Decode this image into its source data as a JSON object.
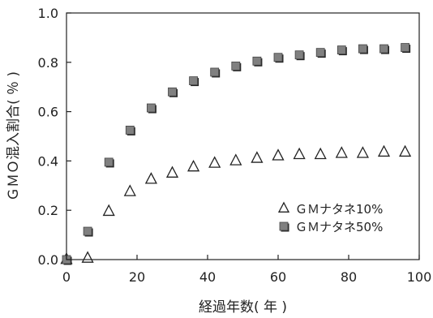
{
  "chart_data": {
    "type": "scatter",
    "xlabel": "経過年数( 年 )",
    "ylabel": "ＧＭＯ混入割合( ％ )",
    "xlim": [
      0,
      100
    ],
    "ylim": [
      0,
      1.0
    ],
    "xticks": [
      0,
      20,
      40,
      60,
      80,
      100
    ],
    "yticks": [
      0.0,
      0.2,
      0.4,
      0.6,
      0.8,
      1.0
    ],
    "x_tick_labels": [
      "0",
      "20",
      "40",
      "60",
      "80",
      "100"
    ],
    "y_tick_labels": [
      "0.0",
      "0.2",
      "0.4",
      "0.6",
      "0.8",
      "1.0"
    ],
    "grid": false,
    "legend_position": "bottom-right",
    "series": [
      {
        "name": "ＧＭナタネ10%",
        "marker": "triangle-open",
        "color": "#222222",
        "x": [
          0,
          6,
          12,
          18,
          24,
          30,
          36,
          42,
          48,
          54,
          60,
          66,
          72,
          78,
          84,
          90,
          96
        ],
        "y": [
          0.0,
          0.005,
          0.195,
          0.275,
          0.325,
          0.35,
          0.375,
          0.39,
          0.4,
          0.41,
          0.42,
          0.425,
          0.425,
          0.43,
          0.43,
          0.435,
          0.435
        ]
      },
      {
        "name": "ＧＭナタネ50%",
        "marker": "square-filled",
        "color": "#808080",
        "x": [
          0,
          6,
          12,
          18,
          24,
          30,
          36,
          42,
          48,
          54,
          60,
          66,
          72,
          78,
          84,
          90,
          96
        ],
        "y": [
          0.0,
          0.115,
          0.395,
          0.525,
          0.615,
          0.68,
          0.725,
          0.76,
          0.785,
          0.805,
          0.82,
          0.83,
          0.84,
          0.85,
          0.855,
          0.855,
          0.86
        ]
      }
    ]
  }
}
